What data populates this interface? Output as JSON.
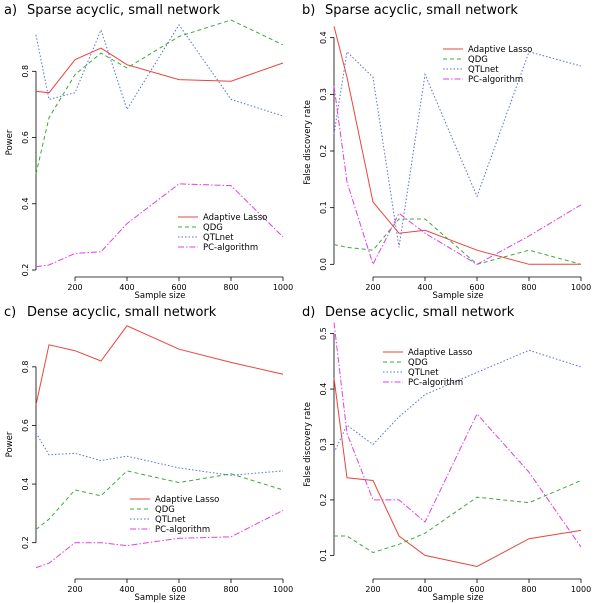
{
  "legend_labels": [
    "Adaptive Lasso",
    "QDG",
    "QTLnet",
    "PC-algorithm"
  ],
  "series_colors": [
    "#e8453c",
    "#3caa3c",
    "#5a6fd6",
    "#e040e0"
  ],
  "series_dash": [
    "",
    "4,3",
    "1.5,2",
    "6,2,1.5,2"
  ],
  "chart_data": [
    {
      "type": "line",
      "panel_label": "a)",
      "title": "Sparse acyclic, small network",
      "xlabel": "Sample size",
      "ylabel": "Power",
      "xlim": [
        50,
        1000
      ],
      "ylim": [
        0.2,
        0.97
      ],
      "xticks": [
        200,
        400,
        600,
        800,
        1000
      ],
      "yticks": [
        0.2,
        0.4,
        0.6,
        0.8
      ],
      "legend_position": "bottom-right",
      "x": [
        50,
        100,
        200,
        300,
        400,
        600,
        800,
        1000
      ],
      "series": [
        {
          "name": "Adaptive Lasso",
          "values": [
            0.74,
            0.735,
            0.835,
            0.87,
            0.82,
            0.775,
            0.77,
            0.825
          ]
        },
        {
          "name": "QDG",
          "values": [
            0.49,
            0.66,
            0.79,
            0.855,
            0.81,
            0.905,
            0.955,
            0.88
          ]
        },
        {
          "name": "QTLnet",
          "values": [
            0.91,
            0.715,
            0.735,
            0.925,
            0.685,
            0.94,
            0.715,
            0.665
          ]
        },
        {
          "name": "PC-algorithm",
          "values": [
            0.21,
            0.215,
            0.25,
            0.255,
            0.34,
            0.46,
            0.455,
            0.3
          ]
        }
      ]
    },
    {
      "type": "line",
      "panel_label": "b)",
      "title": "Sparse acyclic, small network",
      "xlabel": "Sample size",
      "ylabel": "False discovery rate",
      "xlim": [
        50,
        1000
      ],
      "ylim": [
        -0.01,
        0.44
      ],
      "xticks": [
        200,
        400,
        600,
        800,
        1000
      ],
      "yticks": [
        0.0,
        0.1,
        0.2,
        0.3,
        0.4
      ],
      "legend_position": "top-center",
      "x": [
        50,
        100,
        200,
        300,
        400,
        600,
        800,
        1000
      ],
      "series": [
        {
          "name": "Adaptive Lasso",
          "values": [
            0.42,
            0.33,
            0.11,
            0.055,
            0.06,
            0.025,
            0.0,
            0.0
          ]
        },
        {
          "name": "QDG",
          "values": [
            0.035,
            0.03,
            0.025,
            0.08,
            0.08,
            0.0,
            0.025,
            0.0
          ]
        },
        {
          "name": "QTLnet",
          "values": [
            0.23,
            0.375,
            0.33,
            0.03,
            0.335,
            0.12,
            0.375,
            0.35
          ]
        },
        {
          "name": "PC-algorithm",
          "values": [
            0.315,
            0.145,
            0.0,
            0.09,
            0.055,
            0.0,
            0.05,
            0.105
          ]
        }
      ]
    },
    {
      "type": "line",
      "panel_label": "c)",
      "title": "Dense acyclic, small network",
      "xlabel": "Sample size",
      "ylabel": "Power",
      "xlim": [
        50,
        1000
      ],
      "ylim": [
        0.1,
        0.97
      ],
      "xticks": [
        200,
        400,
        600,
        800,
        1000
      ],
      "yticks": [
        0.2,
        0.4,
        0.6,
        0.8
      ],
      "legend_position": "bottom-center",
      "x": [
        50,
        100,
        200,
        300,
        400,
        600,
        800,
        1000
      ],
      "series": [
        {
          "name": "Adaptive Lasso",
          "values": [
            0.67,
            0.875,
            0.855,
            0.82,
            0.94,
            0.86,
            0.815,
            0.775
          ]
        },
        {
          "name": "QDG",
          "values": [
            0.245,
            0.28,
            0.38,
            0.36,
            0.445,
            0.405,
            0.435,
            0.38
          ]
        },
        {
          "name": "QTLnet",
          "values": [
            0.575,
            0.5,
            0.505,
            0.48,
            0.495,
            0.455,
            0.43,
            0.445
          ]
        },
        {
          "name": "PC-algorithm",
          "values": [
            0.115,
            0.13,
            0.2,
            0.2,
            0.19,
            0.215,
            0.22,
            0.31
          ]
        }
      ]
    },
    {
      "type": "line",
      "panel_label": "d)",
      "title": "Dense acyclic, small network",
      "xlabel": "Sample size",
      "ylabel": "False discovery rate",
      "xlim": [
        50,
        1000
      ],
      "ylim": [
        0.07,
        0.53
      ],
      "xticks": [
        200,
        400,
        600,
        800,
        1000
      ],
      "yticks": [
        0.1,
        0.2,
        0.3,
        0.4,
        0.5
      ],
      "legend_position": "top-center",
      "x": [
        50,
        100,
        200,
        300,
        400,
        600,
        800,
        1000
      ],
      "series": [
        {
          "name": "Adaptive Lasso",
          "values": [
            0.42,
            0.24,
            0.235,
            0.135,
            0.1,
            0.08,
            0.13,
            0.145
          ]
        },
        {
          "name": "QDG",
          "values": [
            0.135,
            0.135,
            0.105,
            0.12,
            0.14,
            0.205,
            0.195,
            0.235
          ]
        },
        {
          "name": "QTLnet",
          "values": [
            0.285,
            0.335,
            0.3,
            0.35,
            0.39,
            0.43,
            0.47,
            0.44
          ]
        },
        {
          "name": "PC-algorithm",
          "values": [
            0.52,
            0.32,
            0.2,
            0.2,
            0.16,
            0.355,
            0.25,
            0.115
          ]
        }
      ]
    }
  ]
}
